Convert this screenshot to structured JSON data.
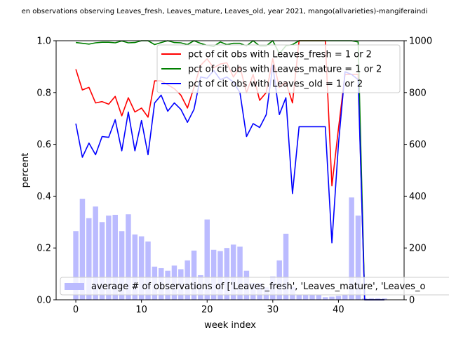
{
  "chart_data": {
    "type": "line",
    "title": "en observations observing Leaves_fresh, Leaves_mature, Leaves_old, year 2021, mango(allvarieties)-mangiferaindi",
    "xlabel": "week index",
    "ylabel": "percent",
    "xlim": [
      -3,
      50
    ],
    "ylim": [
      0,
      1
    ],
    "y2lim": [
      0,
      1000
    ],
    "x_ticks": [
      0,
      10,
      20,
      30,
      40
    ],
    "y_ticks": [
      "0.0",
      "0.2",
      "0.4",
      "0.6",
      "0.8",
      "1.0"
    ],
    "y2_ticks": [
      "0",
      "200",
      "400",
      "600",
      "800",
      "1000"
    ],
    "series": [
      {
        "name": "pct of cit obs with Leaves_fresh = 1 or 2",
        "color": "#ff0000",
        "x": [
          0,
          1,
          2,
          3,
          4,
          5,
          6,
          7,
          8,
          9,
          10,
          11,
          12,
          13,
          14,
          15,
          16,
          17,
          18,
          19,
          20,
          21,
          22,
          23,
          24,
          25,
          26,
          27,
          28,
          29,
          30,
          31,
          32,
          33,
          34,
          35,
          36,
          37,
          38,
          39,
          40,
          41,
          42,
          43,
          44,
          45,
          46,
          47
        ],
        "values": [
          0.89,
          0.81,
          0.82,
          0.76,
          0.765,
          0.755,
          0.785,
          0.71,
          0.78,
          0.725,
          0.74,
          0.705,
          0.845,
          0.845,
          0.83,
          0.815,
          0.79,
          0.74,
          0.82,
          0.905,
          0.93,
          0.895,
          0.91,
          0.915,
          0.86,
          0.9,
          0.8,
          0.87,
          0.77,
          0.8,
          0.93,
          0.82,
          0.84,
          0.76,
          1.0,
          1.0,
          1.0,
          1.0,
          1.0,
          0.44,
          0.66,
          0.87,
          0.87,
          0.87,
          0.0,
          0.0,
          0.0,
          0.0
        ]
      },
      {
        "name": "pct of cit obs with Leaves_mature = 1 or 2",
        "color": "#008000",
        "x": [
          0,
          1,
          2,
          3,
          4,
          5,
          6,
          7,
          8,
          9,
          10,
          11,
          12,
          13,
          14,
          15,
          16,
          17,
          18,
          19,
          20,
          21,
          22,
          23,
          24,
          25,
          26,
          27,
          28,
          29,
          30,
          31,
          32,
          33,
          34,
          35,
          36,
          37,
          38,
          39,
          40,
          41,
          42,
          43,
          44,
          45,
          46,
          47
        ],
        "values": [
          0.993,
          0.99,
          0.987,
          0.992,
          0.994,
          0.994,
          0.992,
          0.999,
          0.992,
          0.993,
          1.0,
          1.0,
          0.985,
          0.993,
          1.0,
          0.993,
          0.992,
          0.985,
          1.0,
          0.99,
          0.982,
          0.978,
          0.995,
          0.985,
          0.99,
          0.99,
          0.98,
          1.0,
          0.98,
          0.98,
          1.0,
          0.95,
          0.98,
          0.985,
          1.0,
          1.0,
          1.0,
          1.0,
          1.0,
          1.0,
          1.0,
          1.0,
          1.0,
          0.995,
          0.0,
          0.0,
          0.0,
          0.0
        ]
      },
      {
        "name": "pct of cit obs with Leaves_old = 1 or 2",
        "color": "#0000ff",
        "x": [
          0,
          1,
          2,
          3,
          4,
          5,
          6,
          7,
          8,
          9,
          10,
          11,
          12,
          13,
          14,
          15,
          16,
          17,
          18,
          19,
          20,
          21,
          22,
          23,
          24,
          25,
          26,
          27,
          28,
          29,
          30,
          31,
          32,
          33,
          34,
          35,
          36,
          37,
          38,
          39,
          40,
          41,
          42,
          43,
          44,
          45,
          46,
          47
        ],
        "values": [
          0.68,
          0.55,
          0.605,
          0.56,
          0.63,
          0.627,
          0.695,
          0.575,
          0.725,
          0.575,
          0.692,
          0.56,
          0.76,
          0.79,
          0.728,
          0.76,
          0.735,
          0.685,
          0.735,
          0.86,
          0.855,
          0.885,
          0.85,
          0.86,
          0.84,
          0.8,
          0.63,
          0.68,
          0.665,
          0.715,
          0.905,
          0.715,
          0.78,
          0.41,
          0.668,
          0.668,
          0.668,
          0.668,
          0.668,
          0.22,
          0.6,
          0.88,
          0.87,
          0.85,
          0.0,
          0.0,
          0.0,
          0.0
        ]
      }
    ],
    "bar_series": {
      "name": "average # of observations of ['Leaves_fresh', 'Leaves_mature', 'Leaves_o",
      "color": "#bbbbff",
      "x": [
        0,
        1,
        2,
        3,
        4,
        5,
        6,
        7,
        8,
        9,
        10,
        11,
        12,
        13,
        14,
        15,
        16,
        17,
        18,
        19,
        20,
        21,
        22,
        23,
        24,
        25,
        26,
        27,
        28,
        29,
        30,
        31,
        32,
        33,
        34,
        35,
        36,
        37,
        38,
        39,
        40,
        41,
        42,
        43,
        44,
        45,
        46,
        47
      ],
      "values": [
        265,
        390,
        315,
        360,
        300,
        325,
        328,
        265,
        330,
        252,
        245,
        225,
        128,
        122,
        112,
        132,
        118,
        152,
        190,
        95,
        310,
        193,
        188,
        200,
        213,
        205,
        112,
        65,
        65,
        48,
        90,
        152,
        255,
        50,
        20,
        20,
        20,
        20,
        10,
        12,
        15,
        20,
        395,
        325,
        5,
        5,
        5,
        5
      ]
    },
    "legend_position": "upper-right",
    "bar_legend_position": "lower-left",
    "grid": false
  }
}
